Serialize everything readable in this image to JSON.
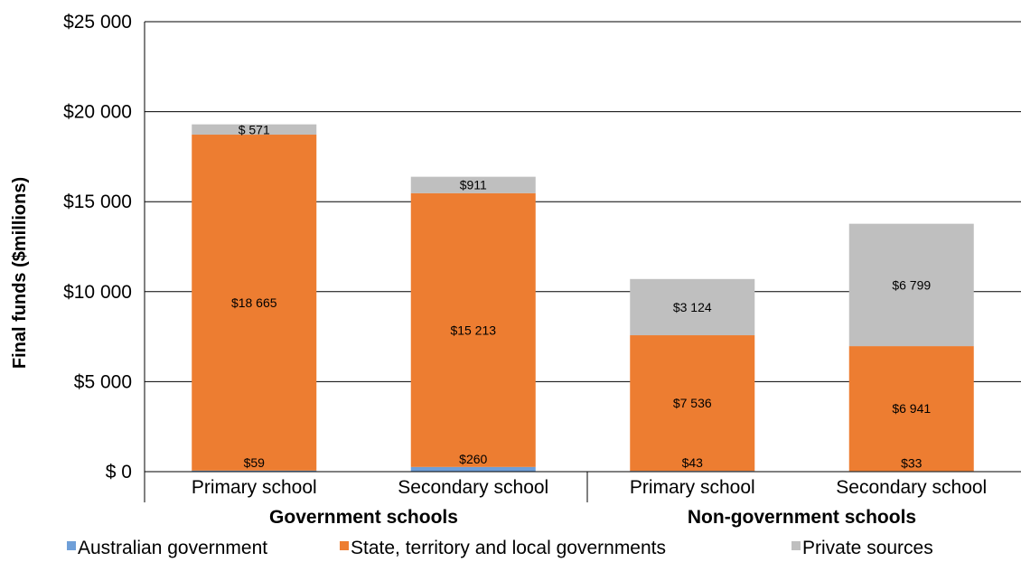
{
  "chart_data": {
    "type": "bar",
    "stacked": true,
    "ylabel": "Final funds ($millions)",
    "ylim": [
      0,
      25000
    ],
    "yticks": [
      0,
      5000,
      10000,
      15000,
      20000,
      25000
    ],
    "ytick_labels": [
      "$ 0",
      "$5 000",
      "$10 000",
      "$15 000",
      "$20 000",
      "$25 000"
    ],
    "grid": true,
    "categories": [
      "Primary school",
      "Secondary school",
      "Primary school",
      "Secondary school"
    ],
    "groups": [
      {
        "label": "Government schools",
        "categories": [
          0,
          1
        ]
      },
      {
        "label": "Non-government schools",
        "categories": [
          2,
          3
        ]
      }
    ],
    "series": [
      {
        "name": "Australian government",
        "color": "#6F9FD8",
        "values": [
          59,
          260,
          43,
          33
        ],
        "labels": [
          "$59",
          "$260",
          "$43",
          "$33"
        ]
      },
      {
        "name": "State, territory and local governments",
        "color": "#ED7D31",
        "values": [
          18665,
          15213,
          7536,
          6941
        ],
        "labels": [
          "$18 665",
          "$15 213",
          "$7 536",
          "$6 941"
        ]
      },
      {
        "name": "Private sources",
        "color": "#BFBFBF",
        "values": [
          571,
          911,
          3124,
          6799
        ],
        "labels": [
          "$ 571",
          "$911",
          "$3 124",
          "$6 799"
        ]
      }
    ],
    "legend_position": "bottom"
  }
}
